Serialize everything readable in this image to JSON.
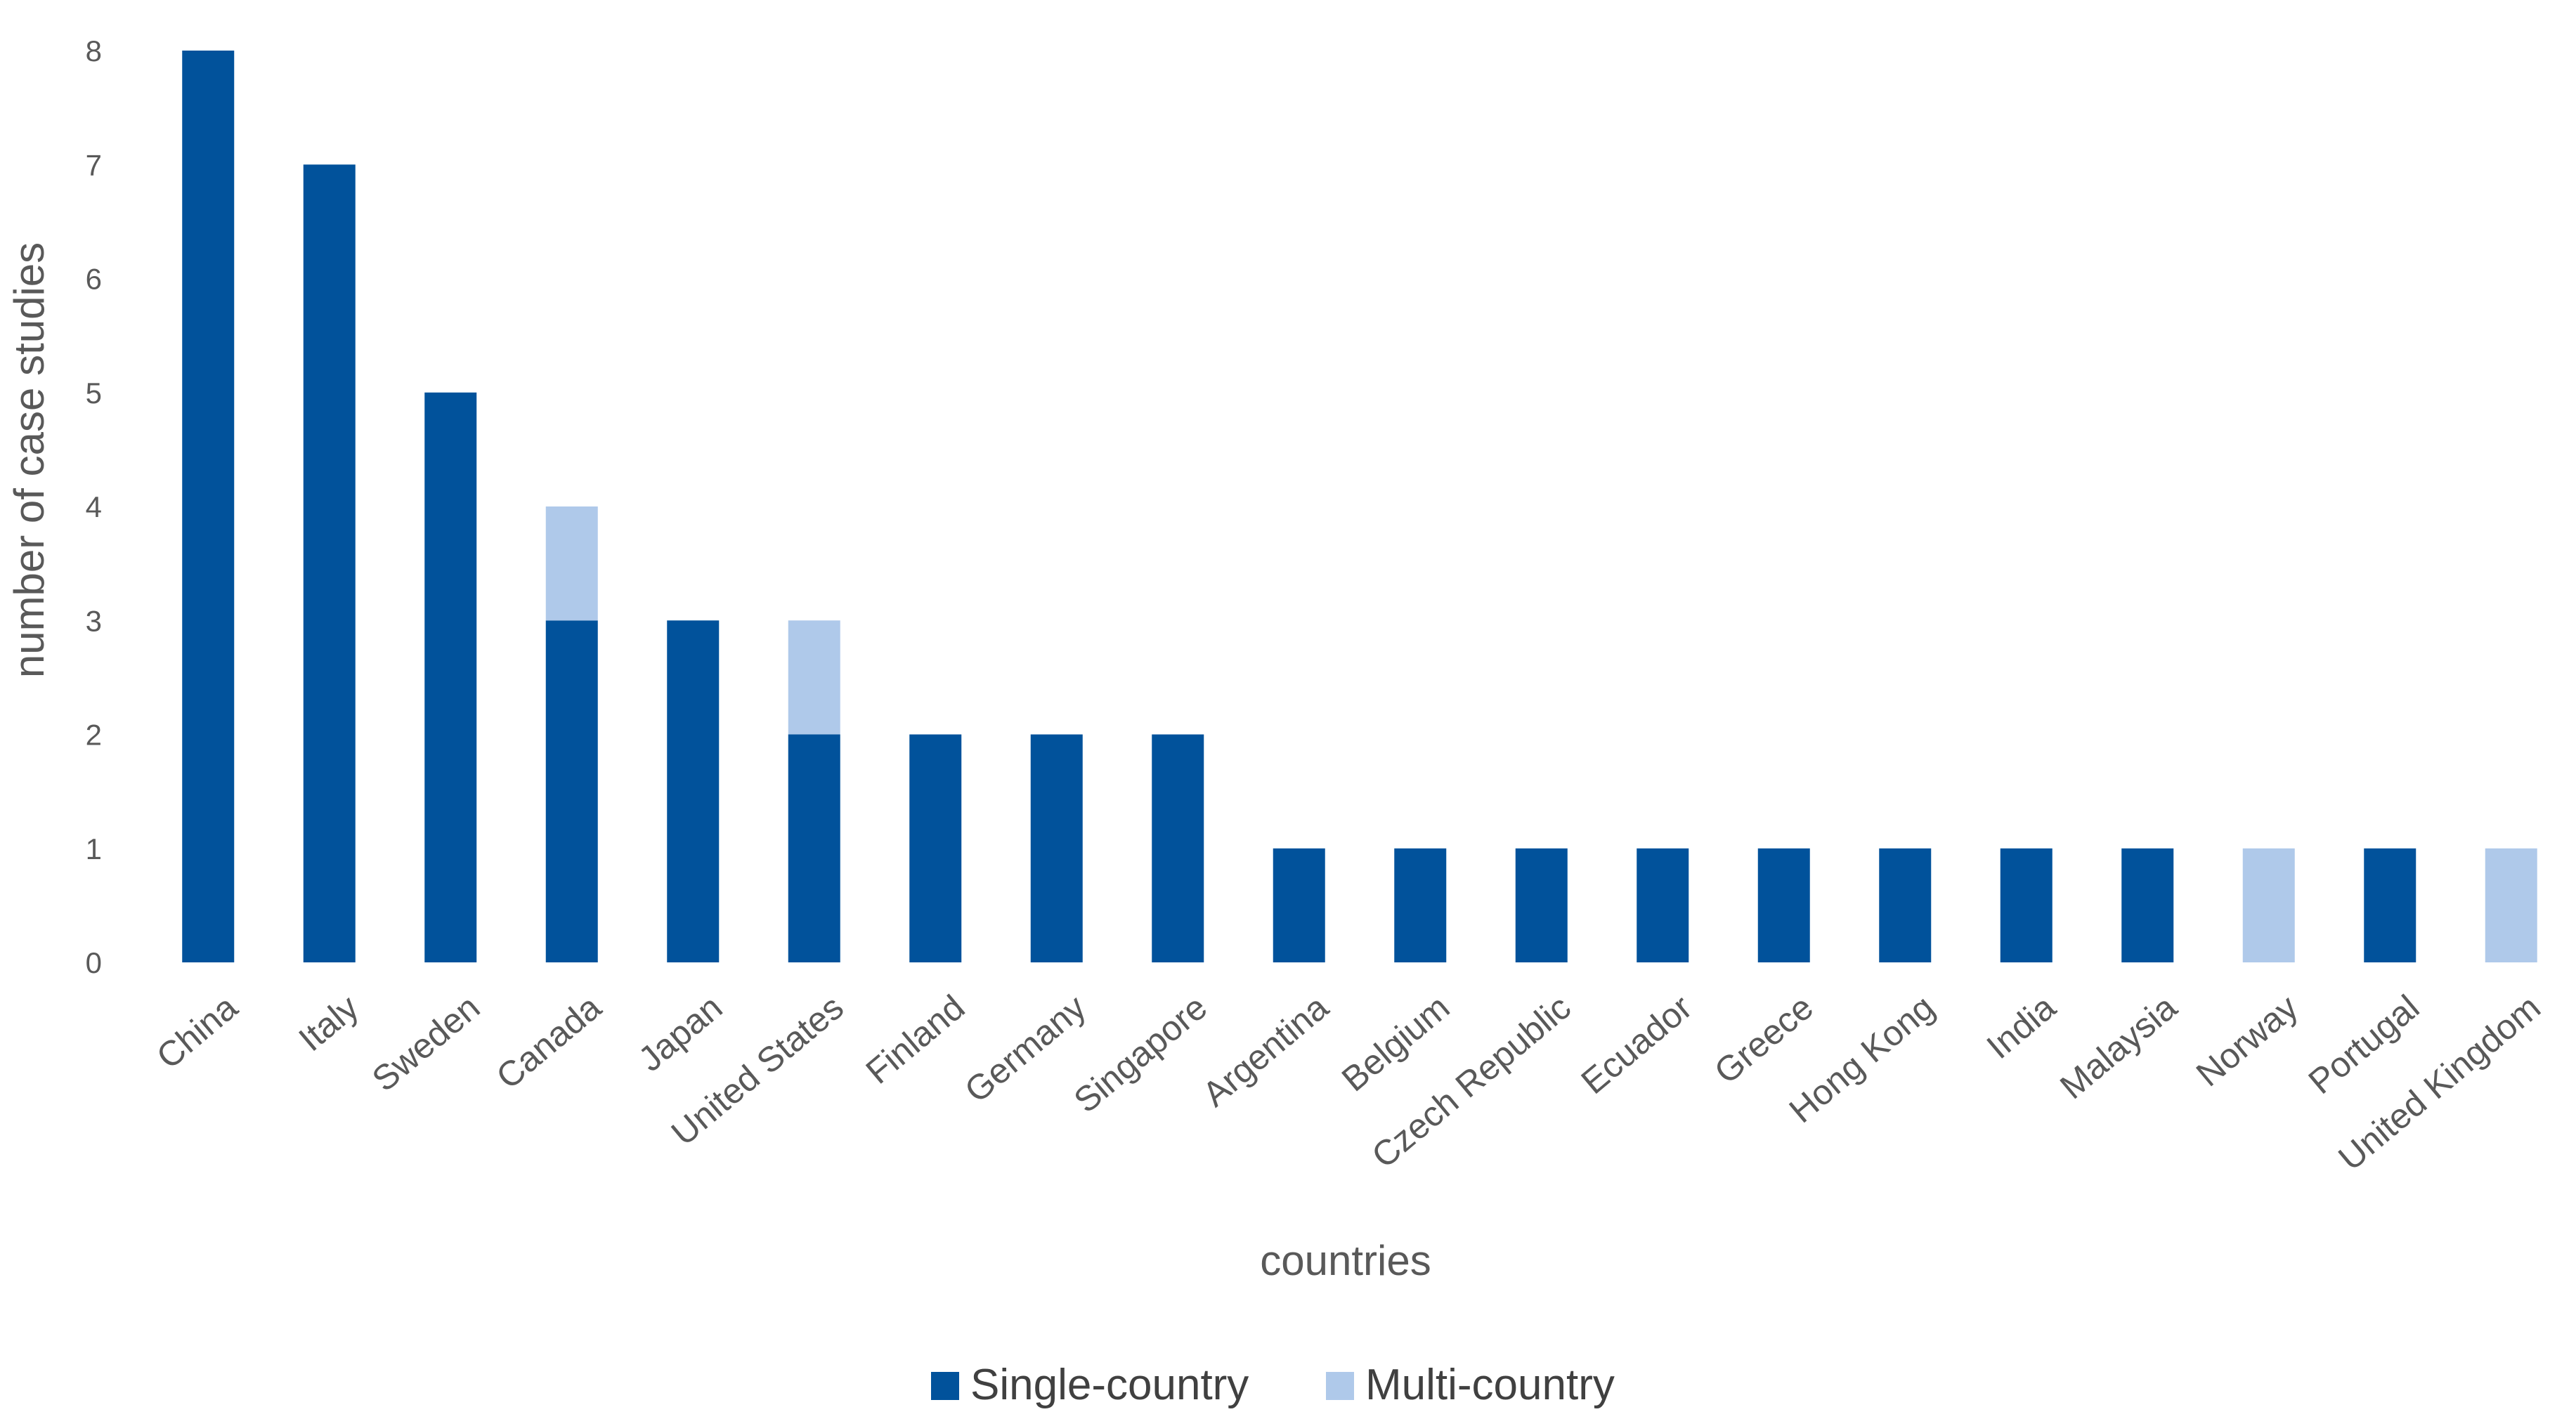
{
  "chart_data": {
    "type": "bar",
    "stacked": true,
    "title": "",
    "xlabel": "countries",
    "ylabel": "number of case studies",
    "ylim": [
      0,
      8
    ],
    "yticks": [
      0,
      1,
      2,
      3,
      4,
      5,
      6,
      7,
      8
    ],
    "grid": false,
    "legend_position": "bottom",
    "categories": [
      "China",
      "Italy",
      "Sweden",
      "Canada",
      "Japan",
      "United States",
      "Finland",
      "Germany",
      "Singapore",
      "Argentina",
      "Belgium",
      "Czech Republic",
      "Ecuador",
      "Greece",
      "Hong Kong",
      "India",
      "Malaysia",
      "Norway",
      "Portugal",
      "United Kingdom"
    ],
    "series": [
      {
        "name": "Single-country",
        "color": "#01529B",
        "values": [
          8,
          7,
          5,
          3,
          3,
          2,
          2,
          2,
          2,
          1,
          1,
          1,
          1,
          1,
          1,
          1,
          1,
          0,
          1,
          0
        ]
      },
      {
        "name": "Multi-country",
        "color": "#AFC9EA",
        "values": [
          0,
          0,
          0,
          1,
          0,
          1,
          0,
          0,
          0,
          0,
          0,
          0,
          0,
          0,
          0,
          0,
          0,
          1,
          0,
          1
        ]
      }
    ]
  }
}
